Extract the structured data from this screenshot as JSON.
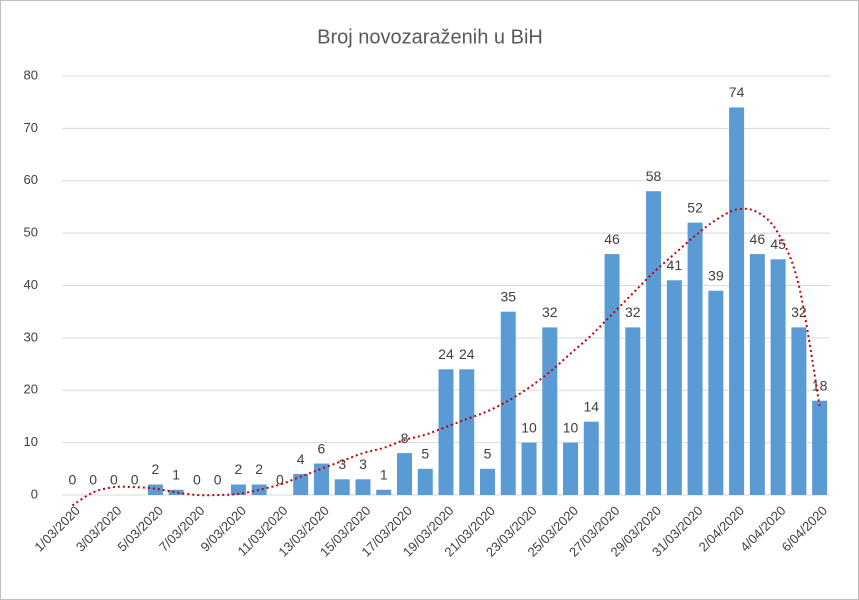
{
  "chart_data": {
    "type": "bar",
    "title": "Broj novozaraženih u BiH",
    "categories": [
      "1/03/2020",
      null,
      "3/03/2020",
      null,
      "5/03/2020",
      null,
      "7/03/2020",
      null,
      "9/03/2020",
      null,
      "11/03/2020",
      null,
      "13/03/2020",
      null,
      "15/03/2020",
      null,
      "17/03/2020",
      null,
      "19/03/2020",
      null,
      "21/03/2020",
      null,
      "23/03/2020",
      null,
      "25/03/2020",
      null,
      "27/03/2020",
      null,
      "29/03/2020",
      null,
      "31/03/2020",
      null,
      "2/04/2020",
      null,
      "4/04/2020",
      null,
      "6/04/2020"
    ],
    "values": [
      0,
      0,
      0,
      0,
      2,
      1,
      0,
      0,
      2,
      2,
      0,
      4,
      6,
      3,
      3,
      1,
      8,
      5,
      24,
      24,
      5,
      35,
      10,
      32,
      10,
      14,
      46,
      32,
      58,
      41,
      52,
      39,
      74,
      46,
      45,
      32,
      18
    ],
    "color": "#5b9bd5",
    "trendline": {
      "color": "#c00000",
      "values": [
        -2,
        0.5,
        1.5,
        1.5,
        1.2,
        0.5,
        0,
        0,
        0.2,
        1,
        2,
        3.5,
        5,
        6.5,
        8,
        9,
        10.5,
        11.5,
        13,
        14.5,
        16,
        18,
        20.5,
        23.5,
        27,
        30.5,
        34.5,
        38.5,
        42.5,
        46,
        49.5,
        52.5,
        54.5,
        54,
        50,
        40,
        17
      ]
    },
    "ylim": [
      0,
      80
    ],
    "yticks": [
      0,
      10,
      20,
      30,
      40,
      50,
      60,
      70,
      80
    ],
    "grid": true
  }
}
